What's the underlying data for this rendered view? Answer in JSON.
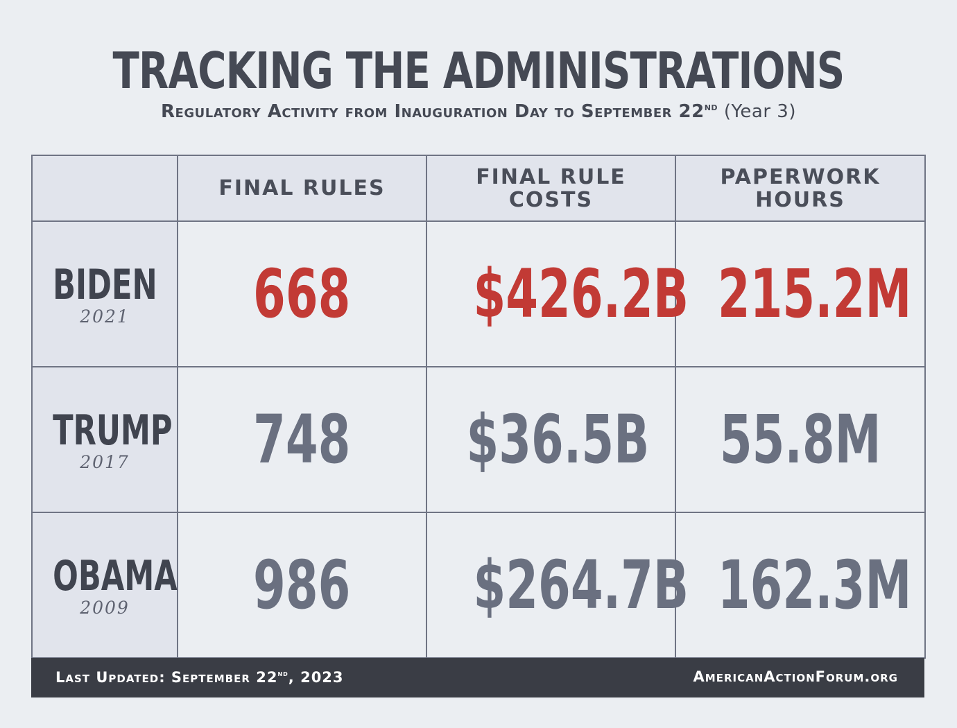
{
  "title": "TRACKING THE ADMINISTRATIONS",
  "subtitle": {
    "main": "Regulatory Activity from Inauguration Day to September 22",
    "superscript": "nd",
    "suffix": "(Year 3)"
  },
  "chart_data": {
    "type": "table",
    "columns": [
      "",
      "FINAL RULES",
      "FINAL RULE COSTS",
      "PAPERWORK HOURS"
    ],
    "header_lines": [
      [
        ""
      ],
      [
        "FINAL RULES"
      ],
      [
        "FINAL RULE",
        "COSTS"
      ],
      [
        "PAPERWORK",
        "HOURS"
      ]
    ],
    "rows": [
      {
        "name": "BIDEN",
        "year": "2021",
        "values": [
          "668",
          "$426.2B",
          "215.2M"
        ],
        "highlight": true
      },
      {
        "name": "TRUMP",
        "year": "2017",
        "values": [
          "748",
          "$36.5B",
          "55.8M"
        ],
        "highlight": false
      },
      {
        "name": "OBAMA",
        "year": "2009",
        "values": [
          "986",
          "$264.7B",
          "162.3M"
        ],
        "highlight": false
      }
    ]
  },
  "footer": {
    "updated_prefix": "Last Updated: September 22",
    "updated_sup": "nd",
    "updated_suffix": ", 2023",
    "site": "AmericanActionForum.org"
  },
  "colors": {
    "highlight": "#c23a35",
    "normal": "#6a7080",
    "background": "#ebeef2",
    "footer": "#3a3d45"
  }
}
